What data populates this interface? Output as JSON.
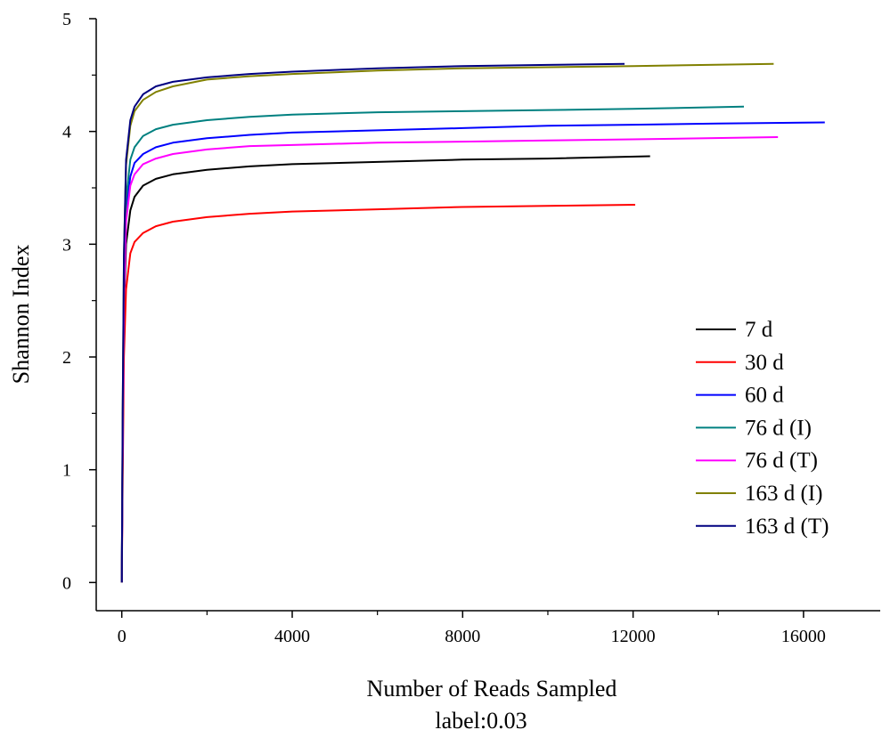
{
  "chart_data": {
    "type": "line",
    "xlabel": "Number of Reads Sampled",
    "ylabel": "Shannon Index",
    "subtitle": "label:0.03",
    "xlim": [
      -600,
      17800
    ],
    "ylim": [
      -0.25,
      5
    ],
    "xticks": [
      0,
      4000,
      8000,
      12000,
      16000
    ],
    "xticks_minor": [
      2000,
      6000,
      10000,
      14000
    ],
    "yticks": [
      0,
      1,
      2,
      3,
      4,
      5
    ],
    "grid": false,
    "legend_position": "right",
    "series": [
      {
        "name": "7 d",
        "color": "#000000",
        "end_x": 12400,
        "x": [
          0,
          20,
          50,
          100,
          200,
          300,
          500,
          800,
          1200,
          2000,
          3000,
          4000,
          6000,
          8000,
          10000,
          12400
        ],
        "y": [
          0,
          1.2,
          2.4,
          3.0,
          3.3,
          3.42,
          3.52,
          3.58,
          3.62,
          3.66,
          3.69,
          3.71,
          3.73,
          3.75,
          3.76,
          3.78
        ]
      },
      {
        "name": "30 d",
        "color": "#ff0000",
        "end_x": 12050,
        "x": [
          0,
          20,
          50,
          100,
          200,
          300,
          500,
          800,
          1200,
          2000,
          3000,
          4000,
          6000,
          8000,
          10000,
          12050
        ],
        "y": [
          0,
          0.9,
          2.0,
          2.6,
          2.92,
          3.02,
          3.1,
          3.16,
          3.2,
          3.24,
          3.27,
          3.29,
          3.31,
          3.33,
          3.34,
          3.35
        ]
      },
      {
        "name": "60 d",
        "color": "#0000ff",
        "end_x": 16500,
        "x": [
          0,
          20,
          50,
          100,
          200,
          300,
          500,
          800,
          1200,
          2000,
          3000,
          4000,
          6000,
          8000,
          10000,
          12000,
          14000,
          16500
        ],
        "y": [
          0,
          1.3,
          2.6,
          3.3,
          3.6,
          3.72,
          3.8,
          3.86,
          3.9,
          3.94,
          3.97,
          3.99,
          4.01,
          4.03,
          4.05,
          4.06,
          4.07,
          4.08
        ]
      },
      {
        "name": "76 d   (I)",
        "color": "#008080",
        "end_x": 14600,
        "x": [
          0,
          20,
          50,
          100,
          200,
          300,
          500,
          800,
          1200,
          2000,
          3000,
          4000,
          6000,
          8000,
          10000,
          12000,
          14600
        ],
        "y": [
          0,
          1.4,
          2.7,
          3.4,
          3.75,
          3.86,
          3.96,
          4.02,
          4.06,
          4.1,
          4.13,
          4.15,
          4.17,
          4.18,
          4.19,
          4.2,
          4.22
        ]
      },
      {
        "name": "76 d   (T)",
        "color": "#ff00ff",
        "end_x": 15400,
        "x": [
          0,
          20,
          50,
          100,
          200,
          300,
          500,
          800,
          1200,
          2000,
          3000,
          4000,
          6000,
          8000,
          10000,
          12000,
          15400
        ],
        "y": [
          0,
          1.2,
          2.5,
          3.2,
          3.52,
          3.62,
          3.71,
          3.76,
          3.8,
          3.84,
          3.87,
          3.88,
          3.9,
          3.91,
          3.92,
          3.93,
          3.95
        ]
      },
      {
        "name": "163 d  (I)",
        "color": "#808000",
        "end_x": 15300,
        "x": [
          0,
          20,
          50,
          100,
          200,
          300,
          500,
          800,
          1200,
          2000,
          3000,
          4000,
          6000,
          8000,
          10000,
          12000,
          15300
        ],
        "y": [
          0,
          1.5,
          2.9,
          3.7,
          4.05,
          4.18,
          4.28,
          4.35,
          4.4,
          4.46,
          4.49,
          4.51,
          4.54,
          4.56,
          4.57,
          4.58,
          4.6
        ]
      },
      {
        "name": "163 d  (T)",
        "color": "#000080",
        "end_x": 11800,
        "x": [
          0,
          20,
          50,
          100,
          200,
          300,
          500,
          800,
          1200,
          2000,
          3000,
          4000,
          6000,
          8000,
          10000,
          11800
        ],
        "y": [
          0,
          1.5,
          2.9,
          3.75,
          4.1,
          4.22,
          4.33,
          4.4,
          4.44,
          4.48,
          4.51,
          4.53,
          4.56,
          4.58,
          4.59,
          4.6
        ]
      }
    ]
  }
}
